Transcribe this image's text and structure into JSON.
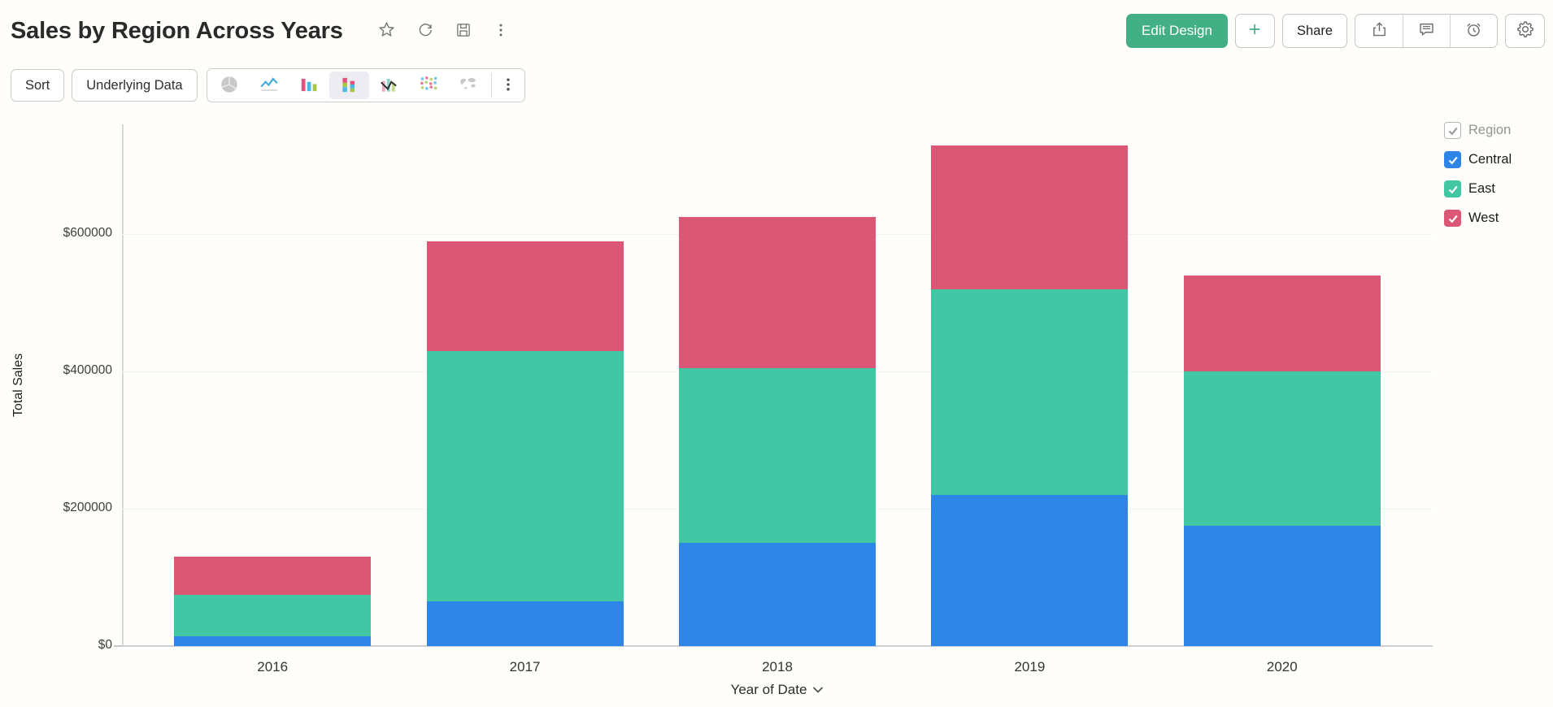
{
  "header": {
    "title": "Sales by Region Across Years",
    "actions": {
      "edit_design": "Edit Design",
      "share": "Share"
    }
  },
  "toolbar": {
    "sort_label": "Sort",
    "underlying_data_label": "Underlying Data",
    "chart_types": [
      "pie",
      "line",
      "bar",
      "stacked-bar",
      "combo",
      "scatter",
      "map"
    ],
    "selected_chart_type": "stacked-bar"
  },
  "icons": {
    "header": [
      "star-icon",
      "refresh-icon",
      "save-icon",
      "kebab-menu-icon"
    ],
    "header_right": [
      "plus-icon",
      "export-icon",
      "comment-icon",
      "alarm-icon",
      "gear-icon"
    ],
    "chart_type_toolbar": [
      "pie-chart-icon",
      "line-chart-icon",
      "bar-chart-icon",
      "stacked-bar-chart-icon",
      "combo-chart-icon",
      "scatter-chart-icon",
      "map-chart-icon",
      "kebab-menu-icon"
    ],
    "x_axis": [
      "chevron-down-icon"
    ],
    "legend": [
      "checkbox-checked-icon"
    ]
  },
  "colors": {
    "accent_green": "#43af85",
    "series_central": "#2e85e8",
    "series_east": "#43c6a4",
    "series_west": "#dc5776",
    "selected_chip_bg": "#ececf2",
    "grid_line": "#f2f2f2",
    "axis_line": "#d9d9d9"
  },
  "chart_data": {
    "type": "bar",
    "subtype": "stacked",
    "title": "Sales by Region Across Years",
    "categories": [
      "2016",
      "2017",
      "2018",
      "2019",
      "2020"
    ],
    "series": [
      {
        "name": "Central",
        "color": "#2e85e8",
        "values": [
          14000,
          65000,
          150000,
          220000,
          175000
        ]
      },
      {
        "name": "East",
        "color": "#43c6a4",
        "values": [
          60000,
          365000,
          255000,
          300000,
          225000
        ]
      },
      {
        "name": "West",
        "color": "#dc5776",
        "values": [
          56000,
          160000,
          220000,
          210000,
          140000
        ]
      }
    ],
    "totals": [
      130000,
      590000,
      625000,
      730000,
      540000
    ],
    "xlabel": "Year of Date",
    "ylabel": "Total Sales",
    "ylim": [
      0,
      760000
    ],
    "yticks": [
      0,
      200000,
      400000,
      600000
    ],
    "ytick_labels": [
      "$0",
      "$200000",
      "$400000",
      "$600000"
    ],
    "legend_title": "Region",
    "legend_position": "right",
    "grid": true
  }
}
